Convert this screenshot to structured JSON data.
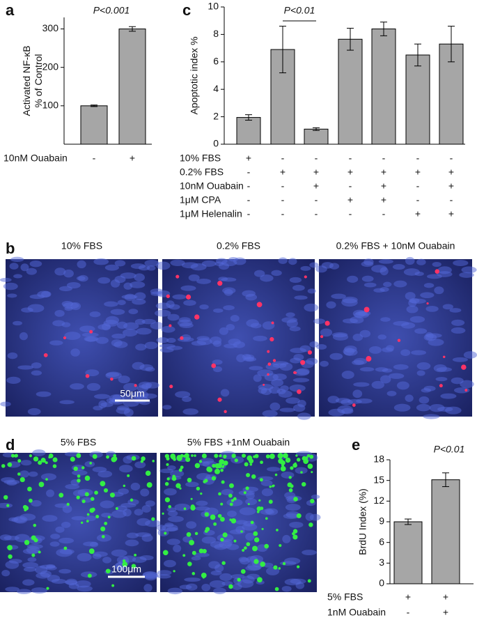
{
  "chart_data": [
    {
      "type": "bar",
      "panel": "a",
      "ylabel": [
        "Activated NF-κB",
        "% of Control"
      ],
      "annotation": "P<0.001",
      "values": [
        100,
        300
      ],
      "errors": [
        2,
        6
      ],
      "color": "#a6a6a6",
      "ylim": [
        0,
        330
      ],
      "yticks": [
        100,
        200,
        300
      ],
      "conditions": [
        {
          "name": "10nM Ouabain",
          "signs": [
            "-",
            "+"
          ]
        }
      ]
    },
    {
      "type": "bar",
      "panel": "c",
      "ylabel": [
        "Apoptotic index %"
      ],
      "annotation": "P<0.01",
      "values": [
        1.95,
        6.9,
        1.1,
        7.65,
        8.4,
        6.5,
        7.3
      ],
      "errors": [
        0.2,
        1.7,
        0.1,
        0.8,
        0.5,
        0.8,
        1.3
      ],
      "color": "#a6a6a6",
      "ylim": [
        0,
        10
      ],
      "yticks": [
        0,
        2,
        4,
        6,
        8,
        10
      ],
      "conditions": [
        {
          "name": "10% FBS",
          "signs": [
            "+",
            "-",
            "-",
            "-",
            "-",
            "-",
            "-"
          ]
        },
        {
          "name": "0.2% FBS",
          "signs": [
            "-",
            "+",
            "+",
            "+",
            "+",
            "+",
            "+"
          ]
        },
        {
          "name": "10nM Ouabain",
          "signs": [
            "-",
            "-",
            "+",
            "-",
            "+",
            "-",
            "+"
          ]
        },
        {
          "name": "1μM CPA",
          "signs": [
            "-",
            "-",
            "-",
            "+",
            "+",
            "-",
            "-"
          ]
        },
        {
          "name": "1μM Helenalin",
          "signs": [
            "-",
            "-",
            "-",
            "-",
            "-",
            "+",
            "+"
          ]
        }
      ]
    },
    {
      "type": "bar",
      "panel": "e",
      "ylabel": [
        "BrdU Index (%)"
      ],
      "annotation": "P<0.01",
      "values": [
        9.0,
        15.1
      ],
      "errors": [
        0.4,
        1.0
      ],
      "color": "#a6a6a6",
      "ylim": [
        0,
        18
      ],
      "yticks": [
        0,
        3,
        6,
        9,
        12,
        15,
        18
      ],
      "conditions": [
        {
          "name": "5% FBS",
          "signs": [
            "+",
            "+"
          ]
        },
        {
          "name": "1nM Ouabain",
          "signs": [
            "-",
            "+"
          ]
        }
      ]
    }
  ],
  "images": [
    {
      "panel": "b",
      "titles": [
        "10% FBS",
        "0.2% FBS",
        "0.2% FBS + 10nM Ouabain"
      ],
      "scale_bar": "50μm"
    },
    {
      "panel": "d",
      "titles": [
        "5% FBS",
        "5% FBS +1nM Ouabain"
      ],
      "scale_bar": "100μm"
    }
  ]
}
